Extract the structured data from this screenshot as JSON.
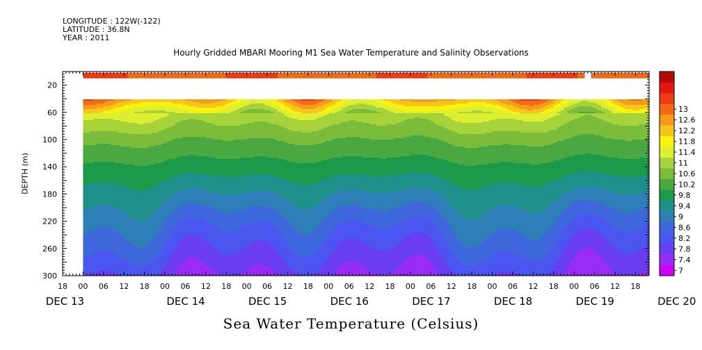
{
  "header": {
    "longitude": "LONGITUDE : 122W(-122)",
    "latitude": "LATITUDE : 36.8N",
    "year": "YEAR : 2011"
  },
  "chart_data": {
    "type": "heatmap",
    "title": "Hourly Gridded MBARI Mooring M1 Sea Water Temperature and Salinity Observations",
    "xlabel": "Sea Water Temperature (Celsius)",
    "ylabel": "DEPTH (m)",
    "ylim": [
      300,
      0
    ],
    "yticks": [
      20,
      60,
      100,
      140,
      180,
      220,
      260,
      300
    ],
    "x_hour_ticks": [
      "18",
      "00",
      "06",
      "12",
      "18",
      "00",
      "06",
      "12",
      "18",
      "00",
      "06",
      "12",
      "18",
      "00",
      "06",
      "12",
      "18",
      "00",
      "06",
      "12",
      "18",
      "00",
      "06",
      "12",
      "18",
      "00",
      "06",
      "12",
      "18",
      "00",
      "06",
      "12"
    ],
    "x_day_labels": [
      "DEC 13",
      "DEC 14",
      "DEC 15",
      "DEC 16",
      "DEC 17",
      "DEC 18",
      "DEC 19",
      "DEC 20"
    ],
    "x_start": "2011-12-13 18:00",
    "x_end": "2011-12-20 22:00",
    "colorbar": {
      "levels": [
        7,
        7.4,
        7.8,
        8.2,
        8.6,
        9,
        9.4,
        9.8,
        10.2,
        10.6,
        11,
        11.4,
        11.8,
        12.2,
        12.6,
        13
      ],
      "level_labels": [
        "7",
        "7.4",
        "7.8",
        "8.2",
        "8.6",
        "9",
        "9.4",
        "9.8",
        "10.2",
        "10.6",
        "11",
        "11.4",
        "11.8",
        "12.2",
        "12.6",
        "13"
      ],
      "colors": [
        "#cc00ff",
        "#9a2cf7",
        "#6a3cf2",
        "#4b55f0",
        "#3f67dc",
        "#2e7fb8",
        "#1f8f8a",
        "#1a9a4a",
        "#4aa842",
        "#7bbd3a",
        "#a6d23a",
        "#ddef30",
        "#f6f30c",
        "#f7c51a",
        "#f59a1a",
        "#f06a14",
        "#ee3a12",
        "#e41616",
        "#b50a0a"
      ]
    },
    "depth_profile": [
      {
        "depth": 10,
        "temp": 12.9
      },
      {
        "depth": 40,
        "temp": 12.2
      },
      {
        "depth": 60,
        "temp": 11.0
      },
      {
        "depth": 100,
        "temp": 10.2
      },
      {
        "depth": 140,
        "temp": 9.6
      },
      {
        "depth": 180,
        "temp": 9.0
      },
      {
        "depth": 220,
        "temp": 8.4
      },
      {
        "depth": 260,
        "temp": 7.9
      },
      {
        "depth": 300,
        "temp": 7.4
      }
    ],
    "data_gaps": [
      {
        "from": "2011-12-13 18:00",
        "to": "2011-12-14 00:00",
        "depths": "all"
      },
      {
        "from": "2011-12-14 00:00",
        "to": "2011-12-20 22:00",
        "depths": "15-40"
      },
      {
        "from": "2011-12-20 03:00",
        "to": "2011-12-20 05:00",
        "depths": "10"
      }
    ]
  }
}
